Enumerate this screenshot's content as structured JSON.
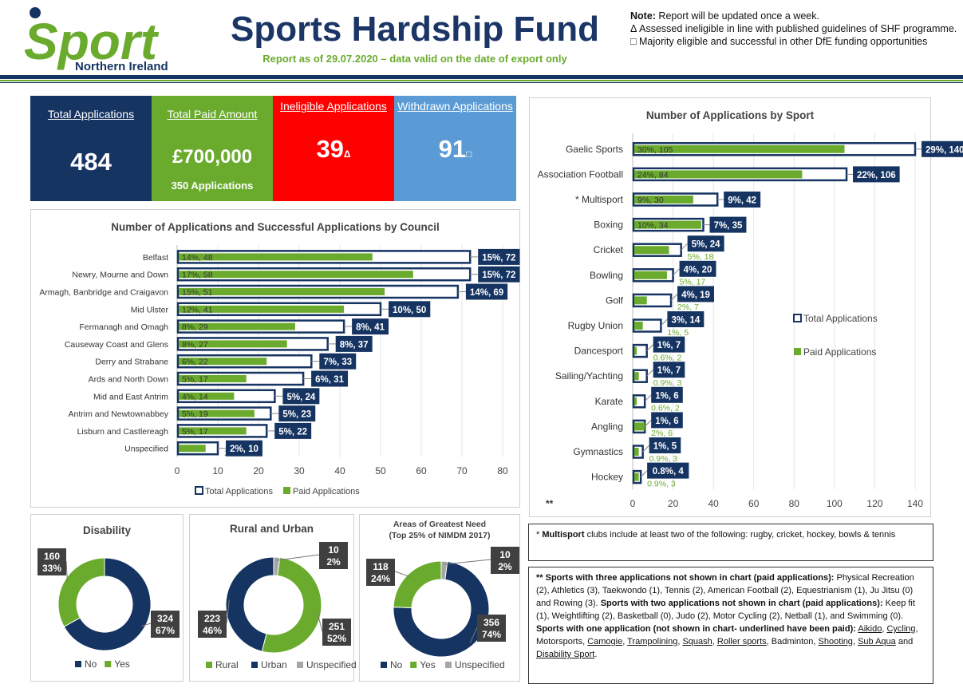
{
  "header": {
    "logo_main": "Sport",
    "logo_sub": "Northern Ireland",
    "title": "Sports Hardship Fund",
    "subtitle": "Report as of 29.07.2020 – data valid on the date of export only",
    "note_label": "Note:",
    "note_text": " Report will be updated once a week.",
    "note_delta": "Δ Assessed ineligible in line with published guidelines of SHF programme.",
    "note_square": "□ Majority eligible and successful in other DfE funding opportunities"
  },
  "kpis": [
    {
      "label": "Total Applications",
      "value": "484",
      "sub": "",
      "color": "#163462"
    },
    {
      "label": "Total Paid Amount",
      "value": "£700,000",
      "sub": "350 Applications",
      "color": "#6aab2e"
    },
    {
      "label": "Ineligible Applications",
      "value": "39",
      "sub": "Δ",
      "color": "#ff0000"
    },
    {
      "label": "Withdrawn Applications",
      "value": "91",
      "sub": "□",
      "color": "#5b9bd5"
    }
  ],
  "colors": {
    "navy": "#163462",
    "green": "#6aab2e",
    "grey": "#a6a6a6",
    "red": "#ff0000",
    "blue": "#5b9bd5"
  },
  "chart_data": [
    {
      "type": "bar",
      "title": "Number of Applications and Successful Applications by Council",
      "categories": [
        "Belfast",
        "Newry, Mourne and Down",
        "Armagh, Banbridge and Craigavon",
        "Mid Ulster",
        "Fermanagh and Omagh",
        "Causeway Coast and Glens",
        "Derry and Strabane",
        "Ards and North Down",
        "Mid and East Antrim",
        "Antrim and Newtownabbey",
        "Lisburn and Castlereagh",
        "Unspecified"
      ],
      "series": [
        {
          "name": "Total Applications",
          "values": [
            72,
            72,
            69,
            50,
            41,
            37,
            33,
            31,
            24,
            23,
            22,
            10
          ],
          "labels": [
            "15%, 72",
            "15%, 72",
            "14%, 69",
            "10%, 50",
            "8%, 41",
            "8%, 37",
            "7%, 33",
            "6%, 31",
            "5%, 24",
            "5%, 23",
            "5%, 22",
            "2%, 10"
          ]
        },
        {
          "name": "Paid Applications",
          "values": [
            48,
            58,
            51,
            41,
            29,
            27,
            22,
            17,
            14,
            19,
            17,
            7
          ],
          "labels": [
            "14%, 48",
            "17%, 58",
            "15%, 51",
            "12%, 41",
            "8%, 29",
            "8%, 27",
            "6%, 22",
            "5%, 17",
            "4%, 14",
            "5%, 19",
            "5%, 17",
            "2%, 7"
          ]
        }
      ],
      "xlim": [
        0,
        80
      ],
      "xticks": [
        0,
        10,
        20,
        30,
        40,
        50,
        60,
        70,
        80
      ],
      "legend": "bottom"
    },
    {
      "type": "bar",
      "title": "Number of Applications by Sport",
      "categories": [
        "Gaelic Sports",
        "Association Football",
        "*  Multisport",
        "Boxing",
        "Cricket",
        "Bowling",
        "Golf",
        "Rugby Union",
        "Dancesport",
        "Sailing/Yachting",
        "Karate",
        "Angling",
        "Gymnastics",
        "Hockey"
      ],
      "series": [
        {
          "name": "Total Applications",
          "values": [
            140,
            106,
            42,
            35,
            24,
            20,
            19,
            14,
            7,
            7,
            6,
            6,
            5,
            4
          ],
          "labels": [
            "29%, 140",
            "22%, 106",
            "9%, 42",
            "7%, 35",
            "5%, 24",
            "4%, 20",
            "4%, 19",
            "3%, 14",
            "1%, 7",
            "1%, 7",
            "1%, 6",
            "1%, 6",
            "1%, 5",
            "0.8%, 4"
          ]
        },
        {
          "name": "Paid Applications",
          "values": [
            105,
            84,
            30,
            34,
            18,
            17,
            7,
            5,
            2,
            3,
            2,
            6,
            3,
            3
          ],
          "labels": [
            "30%, 105",
            "24%, 84",
            "9%, 30",
            "10%, 34",
            "5%, 18",
            "5%, 17",
            "2%, 7",
            "1%, 5",
            "0.6%, 2",
            "0.9%, 3",
            "0.6%, 2",
            "2%, 6",
            "0.9%, 3",
            "0.9%, 3"
          ]
        }
      ],
      "xlim": [
        0,
        140
      ],
      "xticks": [
        0,
        20,
        40,
        60,
        80,
        100,
        120,
        140
      ],
      "extra_label": "**",
      "legend": "right"
    },
    {
      "type": "pie",
      "title": "Disability",
      "slices": [
        {
          "name": "No",
          "value": 324,
          "label_count": "324",
          "label_pct": "67%",
          "color": "#163462"
        },
        {
          "name": "Yes",
          "value": 160,
          "label_count": "160",
          "label_pct": "33%",
          "color": "#6aab2e"
        }
      ],
      "legend": "bottom"
    },
    {
      "type": "pie",
      "title": "Rural and Urban",
      "slices": [
        {
          "name": "Rural",
          "value": 251,
          "label_count": "251",
          "label_pct": "52%",
          "color": "#6aab2e"
        },
        {
          "name": "Urban",
          "value": 223,
          "label_count": "223",
          "label_pct": "46%",
          "color": "#163462"
        },
        {
          "name": "Unspecified",
          "value": 10,
          "label_count": "10",
          "label_pct": "2%",
          "color": "#a6a6a6"
        }
      ],
      "legend": "bottom"
    },
    {
      "type": "pie",
      "title": "Areas of Greatest Need",
      "subtitle": "(Top 25% of NIMDM 2017)",
      "slices": [
        {
          "name": "No",
          "value": 356,
          "label_count": "356",
          "label_pct": "74%",
          "color": "#163462"
        },
        {
          "name": "Yes",
          "value": 118,
          "label_count": "118",
          "label_pct": "24%",
          "color": "#6aab2e"
        },
        {
          "name": "Unspecified",
          "value": 10,
          "label_count": "10",
          "label_pct": "2%",
          "color": "#a6a6a6"
        }
      ],
      "legend": "bottom"
    }
  ],
  "footnotes": {
    "multisport_star": "* ",
    "multisport_bold": "Multisport",
    "multisport_text": " clubs include at least two of the following: rugby, cricket, hockey, bowls & tennis",
    "three_bold": "** Sports with three applications not shown in chart (paid applications):",
    "three_text": " Physical Recreation (2), Athletics (3), Taekwondo (1), Tennis (2), American Football (2), Equestrianism (1), Ju Jitsu (0) and Rowing (3).",
    "two_bold": "Sports with two applications not shown in chart (paid applications):",
    "two_text": " Keep fit (1), Weightlifting (2), Basketball (0), Judo (2), Motor Cycling (2), Netball (1), and Swimming (0).",
    "one_bold": "Sports with one application (not shown in chart- underlined have been paid):",
    "one_items": [
      {
        "text": "Aikido",
        "paid": true,
        "sep": ", "
      },
      {
        "text": "Cycling",
        "paid": true,
        "sep": ", "
      },
      {
        "text": "Motorsports",
        "paid": false,
        "sep": ", "
      },
      {
        "text": "Camogie",
        "paid": true,
        "sep": ", "
      },
      {
        "text": "Trampolining",
        "paid": true,
        "sep": ", "
      },
      {
        "text": "Squash",
        "paid": true,
        "sep": ", "
      },
      {
        "text": "Roller sports",
        "paid": true,
        "sep": ", "
      },
      {
        "text": "Badminton",
        "paid": false,
        "sep": ", "
      },
      {
        "text": "Shooting",
        "paid": true,
        "sep": ", "
      },
      {
        "text": "Sub Aqua",
        "paid": true,
        "sep": " and "
      },
      {
        "text": "Disability Sport",
        "paid": true,
        "sep": "."
      }
    ]
  }
}
